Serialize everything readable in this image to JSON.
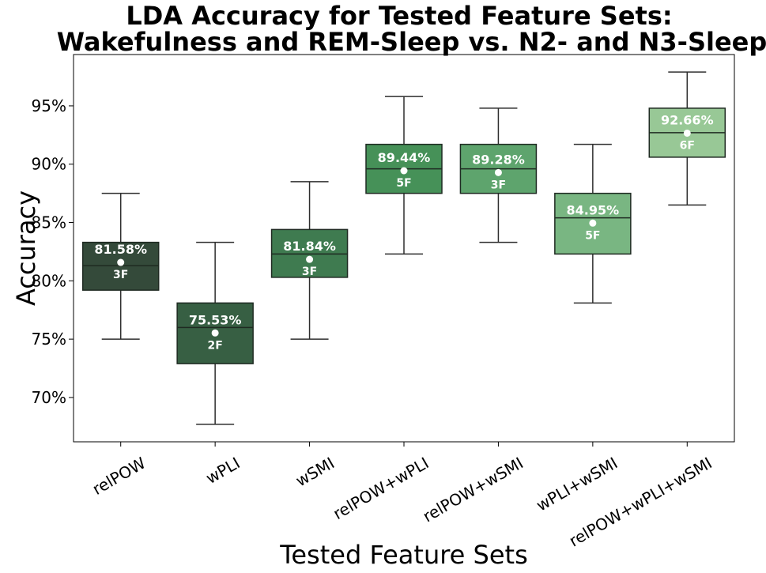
{
  "chart_data": {
    "type": "box",
    "title_line1": "LDA Accuracy for Tested Feature Sets:",
    "title_line2": "Wakefulness and REM-Sleep vs. N2- and N3-Sleep",
    "xlabel": "Tested Feature Sets",
    "ylabel": "Accuracy",
    "ylim": [
      66.2,
      99.4
    ],
    "yticks": [
      70,
      75,
      80,
      85,
      90,
      95
    ],
    "ytick_labels": [
      "70%",
      "75%",
      "80%",
      "85%",
      "90%",
      "95%"
    ],
    "grid": false,
    "categories": [
      "relPOW",
      "wPLI",
      "wSMI",
      "relPOW+wPLI",
      "relPOW+wSMI",
      "wPLI+wSMI",
      "relPOW+wPLI+wSMI"
    ],
    "boxes": [
      {
        "category": "relPOW",
        "whisker_low": 75.0,
        "q1": 79.2,
        "median": 81.3,
        "q3": 83.3,
        "whisker_high": 87.5,
        "mean": 81.58,
        "mean_label": "81.58%",
        "features": "3F",
        "color": "#344a3a"
      },
      {
        "category": "wPLI",
        "whisker_low": 67.7,
        "q1": 72.9,
        "median": 76.0,
        "q3": 78.1,
        "whisker_high": 83.3,
        "mean": 75.53,
        "mean_label": "75.53%",
        "features": "2F",
        "color": "#375f43"
      },
      {
        "category": "wSMI",
        "whisker_low": 75.0,
        "q1": 80.3,
        "median": 82.3,
        "q3": 84.4,
        "whisker_high": 88.5,
        "mean": 81.84,
        "mean_label": "81.84%",
        "features": "3F",
        "color": "#3f7b50"
      },
      {
        "category": "relPOW+wPLI",
        "whisker_low": 82.3,
        "q1": 87.5,
        "median": 89.6,
        "q3": 91.7,
        "whisker_high": 95.8,
        "mean": 89.44,
        "mean_label": "89.44%",
        "features": "5F",
        "color": "#469158"
      },
      {
        "category": "relPOW+wSMI",
        "whisker_low": 83.3,
        "q1": 87.5,
        "median": 89.6,
        "q3": 91.7,
        "whisker_high": 94.8,
        "mean": 89.28,
        "mean_label": "89.28%",
        "features": "3F",
        "color": "#5ea46d"
      },
      {
        "category": "wPLI+wSMI",
        "whisker_low": 78.1,
        "q1": 82.3,
        "median": 85.4,
        "q3": 87.5,
        "whisker_high": 91.7,
        "mean": 84.95,
        "mean_label": "84.95%",
        "features": "5F",
        "color": "#79b682"
      },
      {
        "category": "relPOW+wPLI+wSMI",
        "whisker_low": 86.5,
        "q1": 90.6,
        "median": 92.7,
        "q3": 94.8,
        "whisker_high": 97.9,
        "mean": 92.66,
        "mean_label": "92.66%",
        "features": "6F",
        "color": "#98c896"
      }
    ]
  }
}
